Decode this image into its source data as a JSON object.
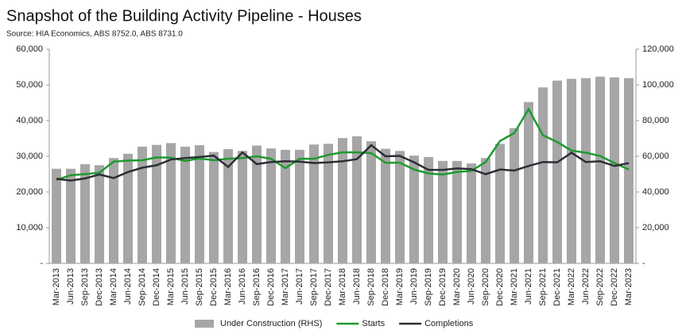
{
  "chart_data": {
    "type": "bar-line",
    "title": "Snapshot of the Building Activity Pipeline - Houses",
    "subtitle": "Source: HIA Economics, ABS 8752.0, ABS 8731.0",
    "categories": [
      "Mar-2013",
      "Jun-2013",
      "Sep-2013",
      "Dec-2013",
      "Mar-2014",
      "Jun-2014",
      "Sep-2014",
      "Dec-2014",
      "Mar-2015",
      "Jun-2015",
      "Sep-2015",
      "Dec-2015",
      "Mar-2016",
      "Jun-2016",
      "Sep-2016",
      "Dec-2016",
      "Mar-2017",
      "Jun-2017",
      "Sep-2017",
      "Dec-2017",
      "Mar-2018",
      "Jun-2018",
      "Sep-2018",
      "Dec-2018",
      "Mar-2019",
      "Jun-2019",
      "Sep-2019",
      "Dec-2019",
      "Mar-2020",
      "Jun-2020",
      "Sep-2020",
      "Dec-2020",
      "Mar-2021",
      "Jun-2021",
      "Sep-2021",
      "Dec-2021",
      "Mar-2022",
      "Jun-2022",
      "Sep-2022",
      "Dec-2022",
      "Mar-2023"
    ],
    "series": [
      {
        "name": "Under Construction (RHS)",
        "type": "bar",
        "axis": "y2",
        "color": "#a6a6a6",
        "values": [
          53000,
          53000,
          55600,
          55000,
          59000,
          61400,
          65400,
          66400,
          67400,
          65400,
          66200,
          62400,
          64000,
          63000,
          66000,
          64400,
          63600,
          63600,
          66600,
          67000,
          70200,
          71200,
          68400,
          64200,
          63000,
          60400,
          59600,
          57400,
          57400,
          56000,
          59000,
          67000,
          75800,
          90400,
          98600,
          102400,
          103400,
          103800,
          104600,
          104200,
          103800
        ]
      },
      {
        "name": "Starts",
        "type": "line",
        "color": "#1e9a2e",
        "values": [
          23400,
          24700,
          25000,
          25400,
          28500,
          28800,
          28900,
          29700,
          29600,
          28700,
          29400,
          28900,
          29300,
          29500,
          30000,
          29300,
          26700,
          29300,
          29300,
          30400,
          31100,
          31100,
          30900,
          28200,
          28200,
          26300,
          25200,
          24900,
          25600,
          25900,
          28400,
          34300,
          36500,
          43200,
          35900,
          34000,
          31600,
          31000,
          30100,
          28100,
          26300
        ]
      },
      {
        "name": "Completions",
        "type": "line",
        "color": "#2b2f36",
        "values": [
          23700,
          23200,
          23800,
          24900,
          23900,
          25600,
          26800,
          27500,
          29100,
          29500,
          29800,
          30200,
          27000,
          31100,
          27800,
          28400,
          28600,
          28500,
          28100,
          28300,
          28600,
          29200,
          33100,
          30000,
          30100,
          28300,
          26200,
          26200,
          26600,
          26400,
          25000,
          26300,
          26000,
          27300,
          28400,
          28300,
          31000,
          28400,
          28600,
          27300,
          28100
        ]
      }
    ],
    "ylim": [
      0,
      60000
    ],
    "yticks": [
      {
        "value": 0,
        "label": "-"
      },
      {
        "value": 10000,
        "label": "10,000"
      },
      {
        "value": 20000,
        "label": "20,000"
      },
      {
        "value": 30000,
        "label": "30,000"
      },
      {
        "value": 40000,
        "label": "40,000"
      },
      {
        "value": 50000,
        "label": "50,000"
      },
      {
        "value": 60000,
        "label": "60,000"
      }
    ],
    "y2lim": [
      0,
      120000
    ],
    "y2ticks": [
      {
        "value": 0,
        "label": "-"
      },
      {
        "value": 20000,
        "label": "20,000"
      },
      {
        "value": 40000,
        "label": "40,000"
      },
      {
        "value": 60000,
        "label": "60,000"
      },
      {
        "value": 80000,
        "label": "80,000"
      },
      {
        "value": 100000,
        "label": "100,000"
      },
      {
        "value": 120000,
        "label": "120,000"
      }
    ]
  }
}
